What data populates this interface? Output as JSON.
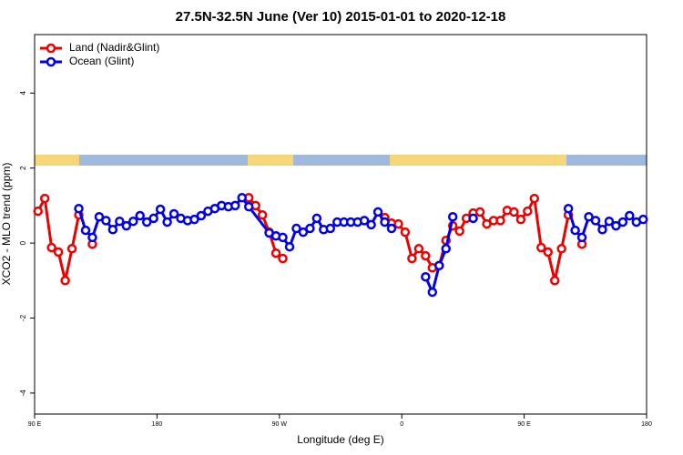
{
  "chart_data": {
    "type": "line",
    "title": "27.5N-32.5N June (Ver 10)   2015-01-01 to 2020-12-18",
    "xlabel": "Longitude (deg E)",
    "ylabel": "XCO2 - MLO trend (ppm)",
    "xlim": [
      90,
      540
    ],
    "ylim": [
      -4.56,
      5.56
    ],
    "xticks": [
      {
        "value": 90,
        "label": "90 E"
      },
      180,
      {
        "value": 270,
        "label": "90 W"
      },
      {
        "value": 360,
        "label": "0"
      },
      {
        "value": 450,
        "label": "90 E"
      },
      {
        "value": 540,
        "label": "180"
      }
    ],
    "yticks": [
      -4,
      -2,
      0,
      2,
      4
    ],
    "legend": "upper left",
    "series": [
      {
        "name": "Land (Nadir&Glint)",
        "color": "#ee0000",
        "x": [
          92.5,
          97.5,
          102.5,
          107.5,
          112.5,
          117.5,
          122.5,
          127.5,
          132.5,
          137.5,
          247.5,
          252.5,
          257.5,
          262.5,
          267.5,
          272.5,
          277.5,
          347.5,
          352.5,
          357.5,
          362.5,
          367.5,
          372.5,
          377.5,
          382.5,
          387.5,
          392.5,
          397.5,
          402.5,
          407.5,
          412.5,
          417.5,
          422.5,
          427.5,
          432.5,
          437.5,
          442.5,
          447.5,
          452.5,
          457.5,
          462.5,
          467.5,
          472.5,
          477.5,
          482.5,
          487.5,
          492.5
        ],
        "values": [
          0.85,
          1.19,
          -0.12,
          -0.24,
          -1.0,
          -0.15,
          0.75,
          null,
          -0.03,
          null,
          1.21,
          1.0,
          0.75,
          0.29,
          -0.27,
          -0.41,
          null,
          0.68,
          0.53,
          0.51,
          0.29,
          -0.41,
          -0.15,
          -0.34,
          -0.66,
          -0.6,
          0.07,
          0.46,
          0.32,
          0.66,
          0.8,
          0.83,
          0.51,
          0.6,
          0.6,
          0.87,
          0.83,
          0.63,
          0.85,
          1.19,
          -0.12,
          -0.24,
          -1.0,
          -0.15,
          0.75,
          null,
          -0.03
        ]
      },
      {
        "name": "Ocean (Glint)",
        "color": "#0000ee",
        "x": [
          122.5,
          127.5,
          132.5,
          137.5,
          142.5,
          147.5,
          152.5,
          157.5,
          162.5,
          167.5,
          172.5,
          177.5,
          182.5,
          187.5,
          192.5,
          197.5,
          202.5,
          207.5,
          212.5,
          217.5,
          222.5,
          227.5,
          232.5,
          237.5,
          242.5,
          247.5,
          262.5,
          267.5,
          272.5,
          277.5,
          282.5,
          287.5,
          292.5,
          297.5,
          302.5,
          307.5,
          312.5,
          317.5,
          322.5,
          327.5,
          332.5,
          337.5,
          342.5,
          347.5,
          352.5,
          357.5,
          377.5,
          382.5,
          387.5,
          392.5,
          397.5,
          402.5,
          412.5,
          417.5,
          482.5,
          487.5,
          492.5,
          497.5,
          502.5,
          507.5,
          512.5,
          517.5,
          522.5,
          527.5,
          532.5,
          537.5
        ],
        "values": [
          0.92,
          0.34,
          0.15,
          0.7,
          0.6,
          0.36,
          0.58,
          0.46,
          0.58,
          0.73,
          0.56,
          0.66,
          0.9,
          0.56,
          0.78,
          0.66,
          0.6,
          0.63,
          0.73,
          0.85,
          0.92,
          1.0,
          0.97,
          1.0,
          1.21,
          0.97,
          0.27,
          0.19,
          0.15,
          -0.1,
          0.39,
          0.29,
          0.39,
          0.66,
          0.36,
          0.39,
          0.56,
          0.56,
          0.56,
          0.56,
          0.6,
          0.49,
          0.83,
          0.56,
          0.39,
          null,
          -0.9,
          -1.31,
          -0.6,
          -0.15,
          0.7,
          null,
          0.66,
          null,
          0.92,
          0.34,
          0.15,
          0.7,
          0.6,
          0.36,
          0.58,
          0.46,
          0.56,
          0.73,
          0.56,
          0.63
        ]
      }
    ]
  }
}
